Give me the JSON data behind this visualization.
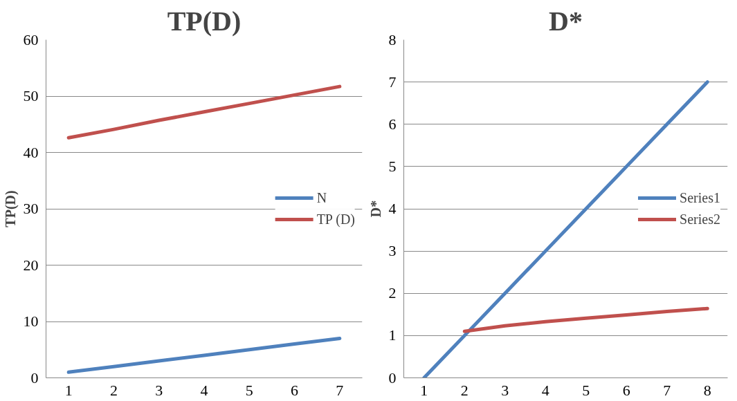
{
  "chart_data": [
    {
      "type": "line",
      "title": "TP(D)",
      "ylabel": "TP(D)",
      "categories": [
        "1",
        "2",
        "3",
        "4",
        "5",
        "6",
        "7"
      ],
      "series": [
        {
          "name": "N",
          "color": "#4f81bd",
          "values": [
            1,
            2,
            3,
            4,
            5,
            6,
            7
          ]
        },
        {
          "name": "TP (D)",
          "color": "#c0504d",
          "values": [
            42.6,
            44.1,
            45.7,
            47.2,
            48.7,
            50.2,
            51.7
          ]
        }
      ],
      "ylim": [
        0,
        60
      ],
      "yticks": [
        0,
        10,
        20,
        30,
        40,
        50,
        60
      ],
      "grid": "y",
      "legend": "right"
    },
    {
      "type": "line",
      "title": "D*",
      "ylabel": "D*",
      "categories": [
        "1",
        "2",
        "3",
        "4",
        "5",
        "6",
        "7",
        "8"
      ],
      "series": [
        {
          "name": "Series1",
          "color": "#4f81bd",
          "values": [
            0,
            1,
            2,
            3,
            4,
            5,
            6,
            7
          ]
        },
        {
          "name": "Series2",
          "color": "#c0504d",
          "values": [
            null,
            1.1,
            1.23,
            1.33,
            1.41,
            1.49,
            1.57,
            1.64
          ]
        }
      ],
      "ylim": [
        0,
        8
      ],
      "yticks": [
        0,
        1,
        2,
        3,
        4,
        5,
        6,
        7,
        8
      ],
      "grid": "y",
      "legend": "right"
    }
  ]
}
